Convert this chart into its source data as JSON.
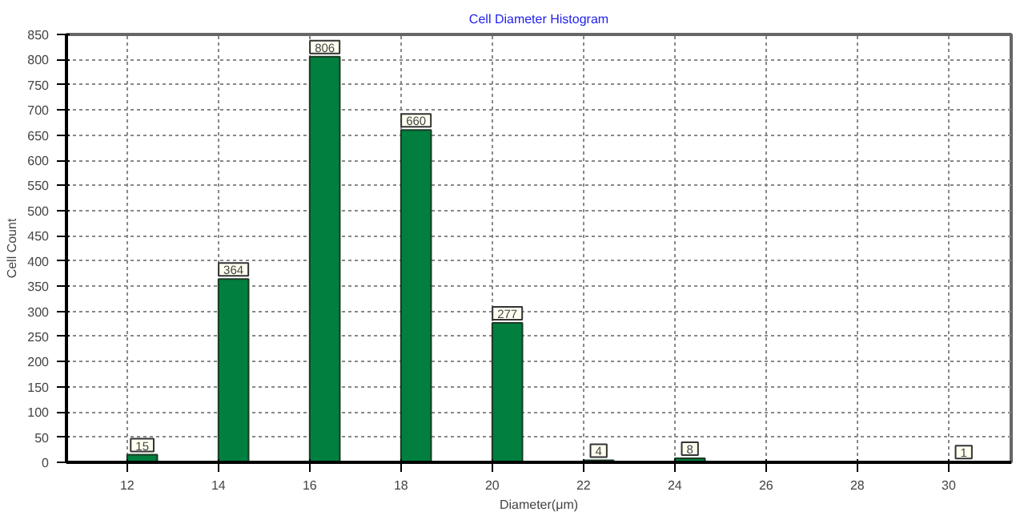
{
  "chart_data": {
    "type": "bar",
    "title": "Cell Diameter Histogram",
    "xlabel": "Diameter(μm)",
    "ylabel": "Cell Count",
    "x": [
      12.33,
      14.33,
      16.33,
      18.33,
      20.33,
      22.33,
      24.33,
      30.33
    ],
    "values": [
      15,
      364,
      806,
      660,
      277,
      4,
      8,
      1
    ],
    "color": "#007f3f",
    "xlim": [
      10.67,
      31.37
    ],
    "xticks": [
      12,
      14,
      16,
      18,
      20,
      22,
      24,
      26,
      28,
      30
    ],
    "ylim": [
      0,
      850
    ],
    "yticks": [
      0,
      50,
      100,
      150,
      200,
      250,
      300,
      350,
      400,
      450,
      500,
      550,
      600,
      650,
      700,
      750,
      800,
      850
    ],
    "grid": true,
    "data_labels": true
  }
}
